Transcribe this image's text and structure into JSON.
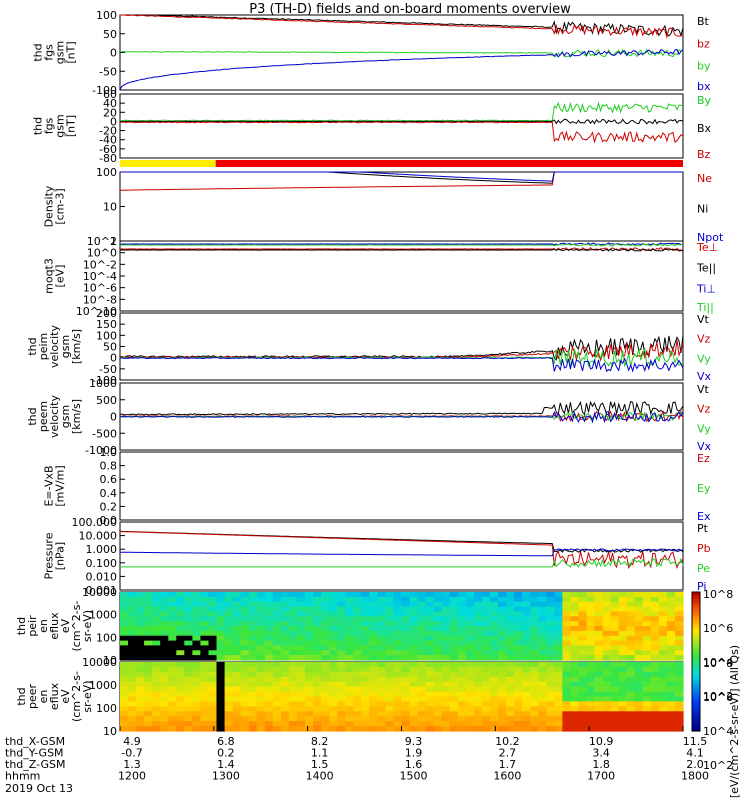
{
  "title": "P3 (TH-D) fields and on-board moments overview",
  "colors": {
    "black": "#000000",
    "red": "#cc0000",
    "green": "#22cc22",
    "blue": "#0000cc"
  },
  "chart_data": {
    "type": "line",
    "x_time_labels": [
      "1200",
      "1300",
      "1400",
      "1500",
      "1600",
      "1700",
      "1800"
    ],
    "x_rows": [
      {
        "label": "thd_X-GSM",
        "values": [
          "4.9",
          "6.8",
          "8.2",
          "9.3",
          "10.2",
          "10.9",
          "11.5"
        ]
      },
      {
        "label": "thd_Y-GSM",
        "values": [
          "-0.7",
          "0.2",
          "1.1",
          "1.9",
          "2.7",
          "3.4",
          "4.1"
        ]
      },
      {
        "label": "thd_Z-GSM",
        "values": [
          "1.3",
          "1.4",
          "1.5",
          "1.6",
          "1.7",
          "1.8",
          "2.0"
        ]
      },
      {
        "label": "hhmm",
        "values": []
      }
    ],
    "date_label": "2019 Oct 13",
    "panels": [
      {
        "ylabel": [
          "thd",
          "fgs",
          "gsm",
          "[nT]"
        ],
        "ticks": [
          "100",
          "50",
          "0",
          "-50",
          "-100"
        ],
        "legend": [
          {
            "name": "Bt",
            "color": "black"
          },
          {
            "name": "bz",
            "color": "red"
          },
          {
            "name": "by",
            "color": "green"
          },
          {
            "name": "bx",
            "color": "blue"
          }
        ]
      },
      {
        "ylabel": [
          "thd",
          "fgs",
          "gsm",
          "[nT]"
        ],
        "ticks": [
          "60",
          "40",
          "20",
          "0",
          "-20",
          "-40",
          "-60",
          "-80"
        ],
        "legend": [
          {
            "name": "By",
            "color": "green"
          },
          {
            "name": "Bx",
            "color": "black"
          },
          {
            "name": "Bz",
            "color": "red"
          }
        ]
      },
      {
        "ylabel": [
          "Density",
          "[cm-3]"
        ],
        "ticks": [
          "100",
          "10",
          "1"
        ],
        "legend": [
          {
            "name": "Ne",
            "color": "red"
          },
          {
            "name": "Ni",
            "color": "black"
          },
          {
            "name": "Npot",
            "color": "blue"
          }
        ]
      },
      {
        "ylabel": [
          "moqt3",
          "[eV]"
        ],
        "ticks": [
          "10^2",
          "10^0",
          "10^-2",
          "10^-4",
          "10^-6",
          "10^-8",
          "10^-10"
        ],
        "legend": [
          {
            "name": "Te⊥",
            "color": "red"
          },
          {
            "name": "Te||",
            "color": "black"
          },
          {
            "name": "Ti⊥",
            "color": "blue"
          },
          {
            "name": "Ti||",
            "color": "green"
          }
        ]
      },
      {
        "ylabel": [
          "thd",
          "peim",
          "velocity",
          "gsm",
          "[km/s]"
        ],
        "ticks": [
          "200",
          "150",
          "100",
          "50",
          "0",
          "-50",
          "-100"
        ],
        "legend": [
          {
            "name": "Vt",
            "color": "black"
          },
          {
            "name": "Vz",
            "color": "red"
          },
          {
            "name": "Vy",
            "color": "green"
          },
          {
            "name": "Vx",
            "color": "blue"
          }
        ]
      },
      {
        "ylabel": [
          "thd",
          "peem",
          "velocity",
          "gsm",
          "[km/s]"
        ],
        "ticks": [
          "1000",
          "500",
          "0",
          "-500",
          "-1000"
        ],
        "legend": [
          {
            "name": "Vt",
            "color": "black"
          },
          {
            "name": "Vz",
            "color": "red"
          },
          {
            "name": "Vy",
            "color": "green"
          },
          {
            "name": "Vx",
            "color": "blue"
          }
        ]
      },
      {
        "ylabel": [
          "E=-VxB",
          "[mV/m]"
        ],
        "ticks": [
          "1.0",
          "0.8",
          "0.6",
          "0.4",
          "0.2",
          "0.0"
        ],
        "legend": [
          {
            "name": "Ez",
            "color": "red"
          },
          {
            "name": "Ey",
            "color": "green"
          },
          {
            "name": "Ex",
            "color": "blue"
          }
        ]
      },
      {
        "ylabel": [
          "Pressure",
          "[nPa]"
        ],
        "ticks": [
          "100.000",
          "10.000",
          "1.000",
          "0.100",
          "0.010",
          "0.001"
        ],
        "legend": [
          {
            "name": "Pt",
            "color": "black"
          },
          {
            "name": "Pb",
            "color": "red"
          },
          {
            "name": "Pe",
            "color": "green"
          },
          {
            "name": "Pi",
            "color": "blue"
          }
        ]
      },
      {
        "ylabel": [
          "thd",
          "peir",
          "en",
          "eflux",
          "eV",
          "(cm^2-s-",
          "sr-eV)"
        ],
        "ticks": [
          "10000",
          "1000",
          "100",
          "10"
        ]
      },
      {
        "ylabel": [
          "thd",
          "peer",
          "en",
          "eflux",
          "eV",
          "(cm^2-s-",
          "sr-eV)"
        ],
        "ticks": [
          "10000",
          "1000",
          "100",
          "10"
        ]
      }
    ],
    "colorbar": {
      "ticks": [
        "10^8",
        "10^6",
        "10^4",
        "10^2"
      ],
      "label": "[eV/(cm^2-s-sr-eV)] (All Qs)"
    }
  }
}
